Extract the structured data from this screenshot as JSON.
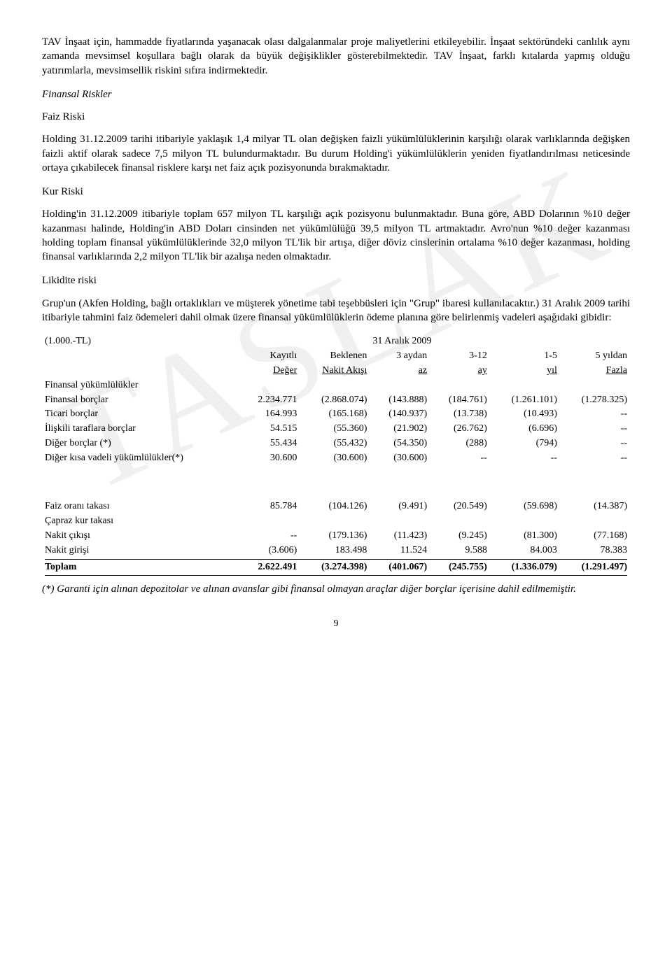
{
  "watermark": "TASLAK",
  "para1": "TAV İnşaat için, hammadde fiyatlarında yaşanacak olası dalgalanmalar proje maliyetlerini etkileyebilir. İnşaat sektöründeki canlılık aynı zamanda mevsimsel koşullara bağlı olarak da büyük değişiklikler gösterebilmektedir. TAV İnşaat, farklı kıtalarda yapmış olduğu yatırımlarla, mevsimsellik riskini sıfıra indirmektedir.",
  "heading_fin_riskler": "Finansal Riskler",
  "heading_faiz": "Faiz Riski",
  "para2": "Holding 31.12.2009 tarihi itibariyle yaklaşık 1,4 milyar TL olan değişken faizli yükümlülüklerinin karşılığı olarak varlıklarında değişken faizli aktif olarak sadece 7,5 milyon TL bulundurmaktadır. Bu durum Holding'i yükümlülüklerin yeniden fiyatlandırılması neticesinde ortaya çıkabilecek finansal risklere karşı net faiz açık pozisyonunda bırakmaktadır.",
  "heading_kur": "Kur Riski",
  "para3": "Holding'in 31.12.2009 itibariyle toplam 657 milyon TL karşılığı açık pozisyonu bulunmaktadır. Buna göre, ABD Dolarının %10 değer kazanması halinde, Holding'in ABD Doları cinsinden net yükümlülüğü 39,5 milyon TL artmaktadır. Avro'nun %10 değer kazanması holding toplam finansal yükümlülüklerinde 32,0 milyon TL'lik bir artışa, diğer döviz cinslerinin ortalama %10 değer kazanması, holding finansal varlıklarında 2,2 milyon TL'lik bir azalışa neden olmaktadır.",
  "heading_likidite": "Likidite riski",
  "para4": "Grup'un (Akfen Holding, bağlı ortaklıkları ve müşterek yönetime tabi teşebbüsleri için \"Grup\" ibaresi kullanılacaktır.) 31 Aralık 2009 tarihi itibariyle tahmini faiz ödemeleri dahil olmak üzere finansal yükümlülüklerin ödeme planına göre belirlenmiş vadeleri aşağıdaki gibidir:",
  "table": {
    "unit_label": "(1.000.-TL)",
    "date_label": "31 Aralık 2009",
    "headers": {
      "c1a": "Kayıtlı",
      "c1b": "Değer",
      "c2a": "Beklenen",
      "c2b": "Nakit Akışı",
      "c3a": "3 aydan",
      "c3b": "az",
      "c4a": "3-12",
      "c4b": "ay",
      "c5a": "1-5",
      "c5b": "yıl",
      "c6a": "5 yıldan",
      "c6b": "Fazla"
    },
    "group_label": "Finansal yükümlülükler",
    "rows": [
      {
        "label": "Finansal borçlar",
        "v": [
          "2.234.771",
          "(2.868.074)",
          "(143.888)",
          "(184.761)",
          "(1.261.101)",
          "(1.278.325)"
        ]
      },
      {
        "label": "Ticari borçlar",
        "v": [
          "164.993",
          "(165.168)",
          "(140.937)",
          "(13.738)",
          "(10.493)",
          "--"
        ]
      },
      {
        "label": "İlişkili taraflara borçlar",
        "v": [
          "54.515",
          "(55.360)",
          "(21.902)",
          "(26.762)",
          "(6.696)",
          "--"
        ]
      },
      {
        "label": "Diğer borçlar (*)",
        "v": [
          "55.434",
          "(55.432)",
          "(54.350)",
          "(288)",
          "(794)",
          "--"
        ]
      },
      {
        "label": "Diğer kısa vadeli yükümlülükler(*)",
        "v": [
          "30.600",
          "(30.600)",
          "(30.600)",
          "--",
          "--",
          "--"
        ]
      }
    ],
    "rows2": [
      {
        "label": "Faiz oranı takası",
        "v": [
          "85.784",
          "(104.126)",
          "(9.491)",
          "(20.549)",
          "(59.698)",
          "(14.387)"
        ]
      },
      {
        "label": "Çapraz kur takası",
        "v": [
          "",
          "",
          "",
          "",
          "",
          ""
        ]
      },
      {
        "label": "Nakit çıkışı",
        "v": [
          "--",
          "(179.136)",
          "(11.423)",
          "(9.245)",
          "(81.300)",
          "(77.168)"
        ]
      },
      {
        "label": "Nakit girişi",
        "v": [
          "(3.606)",
          "183.498",
          "11.524",
          "9.588",
          "84.003",
          "78.383"
        ]
      }
    ],
    "total": {
      "label": "Toplam",
      "v": [
        "2.622.491",
        "(3.274.398)",
        "(401.067)",
        "(245.755)",
        "(1.336.079)",
        "(1.291.497)"
      ]
    }
  },
  "footnote": "(*) Garanti için alınan depozitolar ve alınan avanslar gibi finansal olmayan araçlar diğer borçlar içerisine dahil edilmemiştir.",
  "page_number": "9"
}
